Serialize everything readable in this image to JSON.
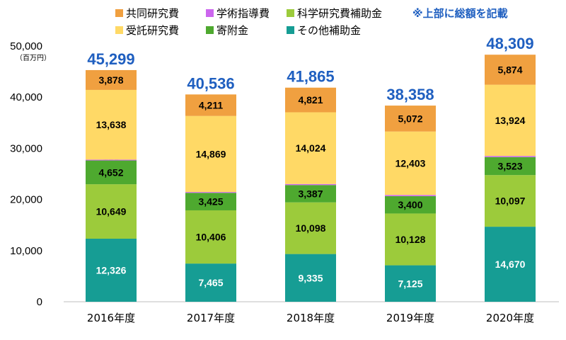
{
  "chart_data": {
    "type": "bar",
    "stacked": true,
    "note": "※上部に総額を記載",
    "unit_label": "（百万円）",
    "ylim": [
      0,
      50000
    ],
    "yticks": [
      "0",
      "10,000",
      "20,000",
      "30,000",
      "40,000",
      "50,000"
    ],
    "ytick_values": [
      0,
      10000,
      20000,
      30000,
      40000,
      50000
    ],
    "categories": [
      "2016年度",
      "2017年度",
      "2018年度",
      "2019年度",
      "2020年度"
    ],
    "legend_placement": "top",
    "series": [
      {
        "name": "その他補助金",
        "color": "#169d94",
        "label_color": "#ffffff",
        "values": [
          12326,
          7465,
          9335,
          7125,
          14670
        ]
      },
      {
        "name": "科学研究費補助金",
        "color": "#9ccb3b",
        "label_color": "#000000",
        "values": [
          10649,
          10406,
          10098,
          10128,
          10097
        ]
      },
      {
        "name": "寄附金",
        "color": "#4ea92f",
        "label_color": "#000000",
        "values": [
          4652,
          3425,
          3387,
          3400,
          3523
        ]
      },
      {
        "name": "学術指導費",
        "color": "#cc66ee",
        "label_color": "#cc66ee",
        "values": [
          156,
          160,
          200,
          230,
          221
        ]
      },
      {
        "name": "受託研究費",
        "color": "#ffd966",
        "label_color": "#000000",
        "values": [
          13638,
          14869,
          14024,
          12403,
          13924
        ]
      },
      {
        "name": "共同研究費",
        "color": "#f0a040",
        "label_color": "#000000",
        "values": [
          3878,
          4211,
          4821,
          5072,
          5874
        ]
      }
    ],
    "totals": [
      45299,
      40536,
      41865,
      38358,
      48309
    ],
    "legend_order": [
      "共同研究費",
      "学術指導費",
      "科学研究費補助金",
      "受託研究費",
      "寄附金",
      "その他補助金"
    ]
  }
}
